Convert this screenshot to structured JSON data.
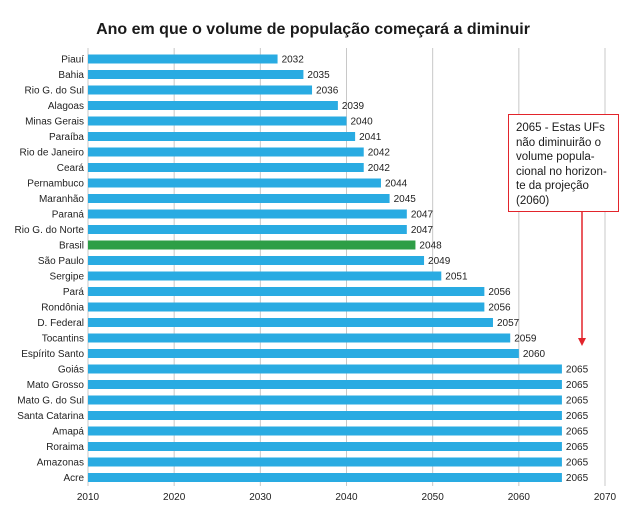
{
  "chart_data": {
    "type": "bar",
    "orientation": "horizontal",
    "title": "Ano em que o volume de população começará a diminuir",
    "xlabel": "",
    "ylabel": "",
    "xlim": [
      2010,
      2070
    ],
    "xticks": [
      2010,
      2020,
      2030,
      2040,
      2050,
      2060,
      2070
    ],
    "grid": true,
    "bar_color": "#29abe2",
    "highlight_color": "#2e9e47",
    "highlight_category": "Brasil",
    "categories": [
      "Piauí",
      "Bahia",
      "Rio G. do Sul",
      "Alagoas",
      "Minas Gerais",
      "Paraíba",
      "Rio de Janeiro",
      "Ceará",
      "Pernambuco",
      "Maranhão",
      "Paraná",
      "Rio G. do Norte",
      "Brasil",
      "São Paulo",
      "Sergipe",
      "Pará",
      "Rondônia",
      "D. Federal",
      "Tocantins",
      "Espírito Santo",
      "Goiás",
      "Mato Grosso",
      "Mato G. do Sul",
      "Santa Catarina",
      "Amapá",
      "Roraima",
      "Amazonas",
      "Acre"
    ],
    "values": [
      2032,
      2035,
      2036,
      2039,
      2040,
      2041,
      2042,
      2042,
      2044,
      2045,
      2047,
      2047,
      2048,
      2049,
      2051,
      2056,
      2056,
      2057,
      2059,
      2060,
      2065,
      2065,
      2065,
      2065,
      2065,
      2065,
      2065,
      2065
    ]
  },
  "annotation": {
    "lines": [
      "2065 - Estas UFs",
      "não diminuirão o",
      "volume popula-",
      "cional no horizon-",
      "te da projeção",
      "(2060)"
    ],
    "border_color": "#e2242b",
    "arrow_color": "#e2242b"
  }
}
